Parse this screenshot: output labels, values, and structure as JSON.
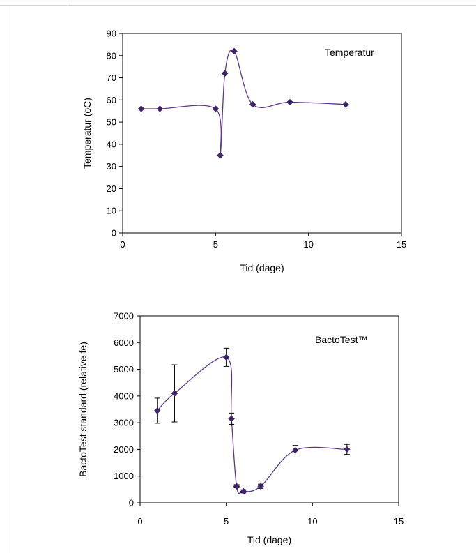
{
  "chart_data": [
    {
      "type": "line",
      "title": "",
      "legend_text": "Temperatur",
      "xlabel": "Tid (dage)",
      "ylabel": "Temperatur (oC)",
      "xlim": [
        0,
        15
      ],
      "ylim": [
        0,
        90
      ],
      "xticks": [
        0,
        5,
        10,
        15
      ],
      "yticks": [
        0,
        10,
        20,
        30,
        40,
        50,
        60,
        70,
        80,
        90
      ],
      "grid": false,
      "color": "#5b3a8c",
      "marker_color": "#3d2466",
      "series": [
        {
          "x": [
            1,
            2,
            5,
            5.25,
            5.5,
            6,
            7,
            9,
            12
          ],
          "values": [
            56,
            56,
            56,
            35,
            72,
            82,
            58,
            59,
            58
          ]
        }
      ]
    },
    {
      "type": "line",
      "title": "",
      "legend_text": "BactoTest™",
      "xlabel": "Tid (dage)",
      "ylabel": "BactoTest standard (relative fe)",
      "xlim": [
        0,
        15
      ],
      "ylim": [
        0,
        7000
      ],
      "xticks": [
        0,
        5,
        10,
        15
      ],
      "yticks": [
        0,
        1000,
        2000,
        3000,
        4000,
        5000,
        6000,
        7000
      ],
      "grid": false,
      "color": "#5b3a8c",
      "marker_color": "#3d2466",
      "series": [
        {
          "x": [
            1,
            2,
            5,
            5.3,
            5.6,
            6,
            7,
            9,
            12
          ],
          "values": [
            3450,
            4100,
            5450,
            3150,
            620,
            430,
            620,
            1970,
            2000
          ],
          "error": [
            470,
            1070,
            340,
            210,
            60,
            60,
            80,
            180,
            190
          ]
        }
      ]
    }
  ]
}
